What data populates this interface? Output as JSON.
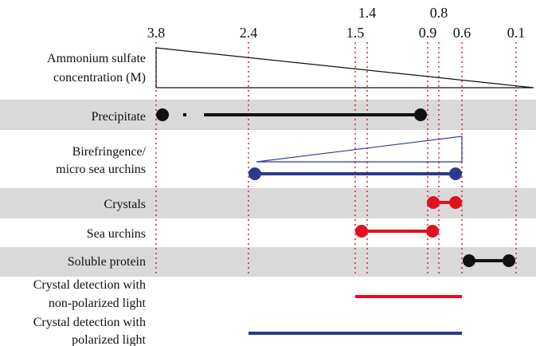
{
  "ticks": [
    {
      "label": "3.8",
      "value": 3.8
    },
    {
      "label": "2.4",
      "value": 2.4
    },
    {
      "label": "1.5",
      "value": 1.5
    },
    {
      "label": "1.4",
      "value": 1.4
    },
    {
      "label": "0.9",
      "value": 0.9
    },
    {
      "label": "0.8",
      "value": 0.8
    },
    {
      "label": "0.6",
      "value": 0.6
    },
    {
      "label": "0.1",
      "value": 0.1
    }
  ],
  "rows": [
    {
      "key": "ammonium",
      "label_lines": [
        "Ammonium sulfate",
        "concentration (M)"
      ],
      "shaded": false
    },
    {
      "key": "precipitate",
      "label_lines": [
        "Precipitate"
      ],
      "shaded": true
    },
    {
      "key": "birefringence",
      "label_lines": [
        "Birefringence/",
        "micro sea urchins"
      ],
      "shaded": false
    },
    {
      "key": "crystals",
      "label_lines": [
        "Crystals"
      ],
      "shaded": true
    },
    {
      "key": "sea_urchins",
      "label_lines": [
        "Sea urchins"
      ],
      "shaded": false
    },
    {
      "key": "soluble",
      "label_lines": [
        "Soluble protein"
      ],
      "shaded": true
    },
    {
      "key": "nonpolarized",
      "label_lines": [
        "Crystal detection with",
        "non-polarized light"
      ],
      "shaded": false
    },
    {
      "key": "polarized",
      "label_lines": [
        "Crystal detection with",
        "polarized light"
      ],
      "shaded": false
    }
  ],
  "ranges": [
    {
      "row": "precipitate",
      "from": 3.8,
      "to": 0.9,
      "color": "#111111",
      "dotted_from": 3.8,
      "dotted_to": 3.2,
      "endpoints": true
    },
    {
      "row": "birefringence",
      "from": 2.4,
      "to": 0.6,
      "color": "#2b3a8f",
      "endpoints": true
    },
    {
      "row": "crystals",
      "from": 0.8,
      "to": 0.6,
      "color": "#e0101e",
      "endpoints": true
    },
    {
      "row": "sea_urchins",
      "from": 1.5,
      "to": 0.8,
      "color": "#e0101e",
      "endpoints": true
    },
    {
      "row": "soluble",
      "from": 0.6,
      "to": 0.1,
      "color": "#111111",
      "endpoints": true
    },
    {
      "row": "nonpolarized",
      "from": 1.5,
      "to": 0.6,
      "color": "#e0101e",
      "endpoints": false
    },
    {
      "row": "polarized",
      "from": 2.4,
      "to": 0.6,
      "color": "#2b3a8f",
      "endpoints": false
    }
  ],
  "colors": {
    "shade": "#d9d9d9",
    "guide": "#e0101e",
    "black": "#111111",
    "blue": "#2b3a8f",
    "red": "#e0101e"
  }
}
